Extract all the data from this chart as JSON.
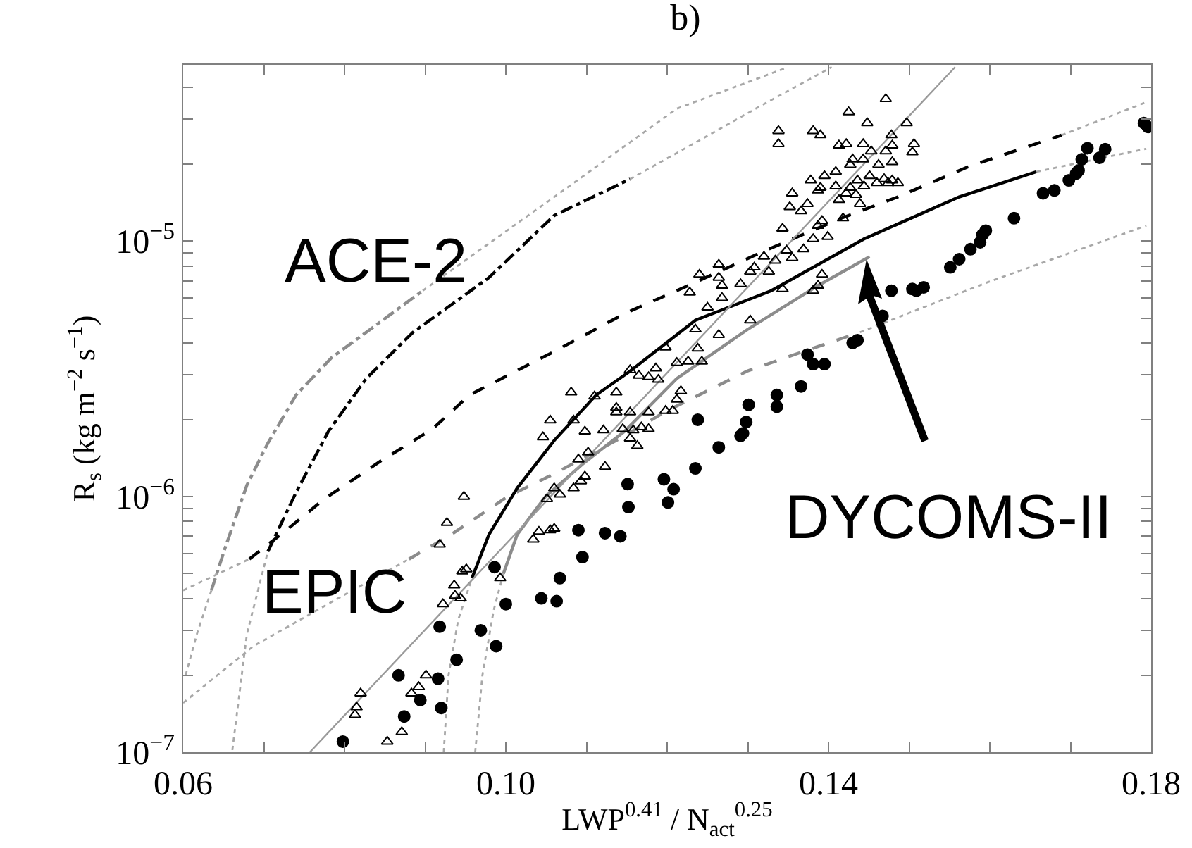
{
  "chart_data": {
    "type": "scatter",
    "title": "b)",
    "xlabel": "LWP$^{0.41}$ / N$_{act}$$^{0.25}$",
    "ylabel": "R$_{s}$ (kg m$^{−2}$ s$^{−1}$)",
    "log": "y",
    "xlim": [
      0.06,
      0.18
    ],
    "ylim": [
      1e-07,
      4.9e-05
    ],
    "xticks": [
      0.06,
      {
        "value": 0.07,
        "label": null
      },
      {
        "value": 0.08,
        "label": null
      },
      {
        "value": 0.09,
        "label": null
      },
      {
        "value": 0.1,
        "label": "0.10"
      },
      {
        "value": 0.11,
        "label": null
      },
      {
        "value": 0.12,
        "label": null
      },
      {
        "value": 0.13,
        "label": null
      },
      0.14,
      {
        "value": 0.15,
        "label": null
      },
      {
        "value": 0.16,
        "label": null
      },
      {
        "value": 0.17,
        "label": null
      },
      0.18
    ],
    "yticks": [
      {
        "value": 1e-07,
        "label": "10$^{−7}$"
      },
      {
        "value": 2e-07,
        "label": null
      },
      {
        "value": 3e-07,
        "label": null
      },
      {
        "value": 4e-07,
        "label": null
      },
      {
        "value": 5e-07,
        "label": null
      },
      {
        "value": 6e-07,
        "label": null
      },
      {
        "value": 7e-07,
        "label": null
      },
      {
        "value": 8e-07,
        "label": null
      },
      {
        "value": 9e-07,
        "label": null
      },
      {
        "value": 1e-06,
        "label": "10$^{−6}$"
      },
      {
        "value": 2e-06,
        "label": null
      },
      {
        "value": 3e-06,
        "label": null
      },
      {
        "value": 4e-06,
        "label": null
      },
      {
        "value": 5e-06,
        "label": null
      },
      {
        "value": 6e-06,
        "label": null
      },
      {
        "value": 7e-06,
        "label": null
      },
      {
        "value": 8e-06,
        "label": null
      },
      {
        "value": 9e-06,
        "label": null
      },
      {
        "value": 1e-05,
        "label": "10$^{−5}$"
      },
      {
        "value": 2e-05,
        "label": null
      },
      {
        "value": 3e-05,
        "label": null
      },
      {
        "value": 4e-05,
        "label": null
      }
    ],
    "annotations": [
      "ACE-2",
      "EPIC",
      "DYCOMS-II"
    ],
    "series": [
      {
        "type": "line",
        "line_style": "dotted",
        "color": "#a8a8a8",
        "x": [
          0.0603,
          0.0617,
          0.0635
        ],
        "values": [
          2e-07,
          2.9e-07,
          4.3e-07
        ]
      },
      {
        "type": "line",
        "line_style": "dashdot",
        "color": "#8c8c8c",
        "x": [
          0.0635,
          0.0652,
          0.0679,
          0.0705,
          0.074,
          0.0784,
          0.0827,
          0.0897
        ],
        "values": [
          4.3e-07,
          6.3e-07,
          1.11e-06,
          1.62e-06,
          2.5e-06,
          3.5e-06,
          4.4e-06,
          6.4e-06
        ]
      },
      {
        "type": "line",
        "line_style": "dotted",
        "color": "#a8a8a8",
        "x": [
          0.0897,
          0.106,
          0.1212,
          0.135
        ],
        "values": [
          6.4e-06,
          1.49e-05,
          3.3e-05,
          4.8e-05
        ]
      },
      {
        "type": "line",
        "line_style": "dotted",
        "color": "#a8a8a8",
        "x": [
          0.0661,
          0.0679,
          0.0705
        ],
        "values": [
          1.02e-07,
          2.9e-07,
          6.1e-07
        ]
      },
      {
        "type": "line",
        "line_style": "dashdot",
        "color": "#000000",
        "x": [
          0.0705,
          0.074,
          0.078,
          0.0827,
          0.0885,
          0.0979,
          0.106,
          0.1154
        ],
        "values": [
          6.1e-07,
          1.04e-06,
          1.8e-06,
          2.9e-06,
          4.4e-06,
          7.2e-06,
          1.26e-05,
          1.75e-05
        ]
      },
      {
        "type": "line",
        "line_style": "dotted",
        "color": "#a8a8a8",
        "x": [
          0.1154,
          0.1242,
          0.1317,
          0.1404
        ],
        "values": [
          1.75e-05,
          2.5e-05,
          3.4e-05,
          4.8e-05
        ]
      },
      {
        "type": "line",
        "line_style": "dotted",
        "color": "#a8a8a8",
        "x": [
          0.06,
          0.0682
        ],
        "values": [
          4.3e-07,
          5.7e-07
        ]
      },
      {
        "type": "line",
        "line_style": "dashed",
        "color": "#000000",
        "x": [
          0.0682,
          0.0728,
          0.0775,
          0.0845,
          0.0909,
          0.0955,
          0.106,
          0.1147,
          0.1235,
          0.1322,
          0.1416,
          0.1486,
          0.1574,
          0.1689
        ],
        "values": [
          5.7e-07,
          7.4e-07,
          9.8e-07,
          1.38e-06,
          1.84e-06,
          2.5e-06,
          3.7e-06,
          5.2e-06,
          6.9e-06,
          9.2e-06,
          1.23e-05,
          1.49e-05,
          1.96e-05,
          2.6e-05
        ]
      },
      {
        "type": "line",
        "line_style": "dotted",
        "color": "#a8a8a8",
        "x": [
          0.1689,
          0.1794
        ],
        "values": [
          2.6e-05,
          3.5e-05
        ]
      },
      {
        "type": "line",
        "line_style": "dotted",
        "color": "#a8a8a8",
        "x": [
          0.06,
          0.0687,
          0.0792,
          0.088
        ],
        "values": [
          1.56e-07,
          2.6e-07,
          4e-07,
          5.7e-07
        ]
      },
      {
        "type": "line",
        "line_style": "dashed",
        "color": "#8c8c8c",
        "x": [
          0.088,
          0.0932,
          0.1002,
          0.106,
          0.1137,
          0.12,
          0.1299,
          0.1369,
          0.1439
        ],
        "values": [
          5.7e-07,
          7.1e-07,
          1e-06,
          1.23e-06,
          1.66e-06,
          2.17e-06,
          3.1e-06,
          3.7e-06,
          4.4e-06
        ]
      },
      {
        "type": "line",
        "line_style": "dotted",
        "color": "#a8a8a8",
        "x": [
          0.1439,
          0.1597,
          0.1794
        ],
        "values": [
          4.4e-06,
          6.9e-06,
          1.15e-05
        ]
      },
      {
        "type": "line",
        "line_style": "dotted",
        "color": "#a8a8a8",
        "x": [
          0.0923,
          0.0929,
          0.0941,
          0.0958
        ],
        "values": [
          1e-07,
          2e-07,
          3.3e-07,
          4.8e-07
        ]
      },
      {
        "type": "line",
        "line_style": "solid",
        "color": "#000000",
        "x": [
          0.0958,
          0.0979,
          0.1014,
          0.106,
          0.1112,
          0.1154,
          0.1235,
          0.1329,
          0.1444,
          0.1562,
          0.1658
        ],
        "values": [
          4.8e-07,
          7.1e-07,
          1.08e-06,
          1.66e-06,
          2.5e-06,
          3.1e-06,
          4.9e-06,
          6.4e-06,
          1.02e-05,
          1.49e-05,
          1.87e-05
        ]
      },
      {
        "type": "line",
        "line_style": "dotted",
        "color": "#a8a8a8",
        "x": [
          0.1658,
          0.1794
        ],
        "values": [
          1.87e-05,
          2.3e-05
        ]
      },
      {
        "type": "line",
        "line_style": "dotted",
        "color": "#a8a8a8",
        "x": [
          0.0962,
          0.0971,
          0.0985,
          0.0997
        ],
        "values": [
          1e-07,
          2e-07,
          3.6e-07,
          5e-07
        ]
      },
      {
        "type": "line",
        "line_style": "solid",
        "color": "#8c8c8c",
        "x": [
          0.0997,
          0.1014,
          0.1049,
          0.1095,
          0.1147,
          0.1212,
          0.1299,
          0.1387,
          0.1451
        ],
        "values": [
          5e-07,
          7.1e-07,
          1e-06,
          1.34e-06,
          1.8e-06,
          2.9e-06,
          4.5e-06,
          6.7e-06,
          8.7e-06
        ]
      },
      {
        "type": "line",
        "line_style": "solid",
        "color": "#9a9a9a",
        "x": [
          0.0757,
          0.1557
        ],
        "values": [
          1e-07,
          4.8e-05
        ]
      },
      {
        "marker": "triangle",
        "color": "#000000",
        "x": [
          0.082,
          0.0815,
          0.0813,
          0.0853,
          0.0871,
          0.0883,
          0.0892,
          0.0901,
          0.0922,
          0.0936,
          0.0937,
          0.0944,
          0.0946,
          0.0951,
          0.0918,
          0.0927,
          0.0948,
          0.0993,
          0.1034,
          0.1041,
          0.1055,
          0.106,
          0.1051,
          0.1067,
          0.106,
          0.1084,
          0.1093,
          0.1098,
          0.109,
          0.1102,
          0.1098,
          0.1123,
          0.1121,
          0.1145,
          0.1154,
          0.1163,
          0.1158,
          0.1168,
          0.1055,
          0.1046,
          0.1084,
          0.1137,
          0.1154,
          0.1177,
          0.1198,
          0.1207,
          0.1212,
          0.1081,
          0.111,
          0.1137,
          0.1154,
          0.1165,
          0.1177,
          0.1186,
          0.1189,
          0.1198,
          0.1212,
          0.1226,
          0.1217,
          0.1235,
          0.1228,
          0.124,
          0.1177,
          0.1137,
          0.1243,
          0.1264,
          0.1264,
          0.1268,
          0.1268,
          0.1291,
          0.1303,
          0.1308,
          0.132,
          0.1326,
          0.1303,
          0.1264,
          0.125,
          0.1238,
          0.1343,
          0.1334,
          0.1348,
          0.1355,
          0.1369,
          0.1343,
          0.1352,
          0.1355,
          0.1366,
          0.1374,
          0.1381,
          0.1387,
          0.1392,
          0.1399,
          0.1387,
          0.1378,
          0.139,
          0.1395,
          0.1409,
          0.1413,
          0.1422,
          0.1427,
          0.1434,
          0.1436,
          0.1444,
          0.1451,
          0.146,
          0.1469,
          0.1474,
          0.1479,
          0.1486,
          0.1418,
          0.1439,
          0.1409,
          0.1427,
          0.143,
          0.1443,
          0.1462,
          0.1479,
          0.1413,
          0.1422,
          0.1443,
          0.1453,
          0.1471,
          0.1479,
          0.1478,
          0.1504,
          0.1506,
          0.1338,
          0.1338,
          0.1381,
          0.139,
          0.1425,
          0.1448,
          0.1497,
          0.1471,
          0.1381,
          0.1387,
          0.1392
        ],
        "values": [
          1.7e-07,
          1.5e-07,
          1.4e-07,
          1.1e-07,
          1.2e-07,
          1.7e-07,
          1.8e-07,
          2e-07,
          3.8e-07,
          4.5e-07,
          4.1e-07,
          4e-07,
          5.1e-07,
          5.2e-07,
          6.5e-07,
          7.9e-07,
          1e-06,
          4.8e-07,
          6.8e-07,
          7.3e-07,
          7.4e-07,
          7.5e-07,
          9.8e-07,
          1.02e-06,
          1.08e-06,
          1.08e-06,
          1.15e-06,
          1.2e-06,
          1.4e-06,
          1.49e-06,
          1.8e-06,
          1.31e-06,
          1.82e-06,
          1.84e-06,
          1.69e-06,
          1.58e-06,
          1.82e-06,
          1.87e-06,
          1.99e-06,
          1.71e-06,
          1.99e-06,
          2.14e-06,
          2.14e-06,
          2.14e-06,
          2.17e-06,
          2.17e-06,
          2.4e-06,
          2.56e-06,
          2.47e-06,
          2.56e-06,
          3.13e-06,
          2.98e-06,
          2.94e-06,
          3.18e-06,
          2.87e-06,
          3.84e-06,
          3.34e-06,
          3.38e-06,
          2.59e-06,
          4.52e-06,
          6.3e-06,
          7.4e-06,
          1.84e-06,
          2.23e-06,
          3.38e-06,
          8.1e-06,
          7.2e-06,
          6.7e-06,
          6e-06,
          6.8e-06,
          7.6e-06,
          7.9e-06,
          8.7e-06,
          7.6e-06,
          4.9e-06,
          4.3e-06,
          5.5e-06,
          3.8e-06,
          6.5e-06,
          8.4e-06,
          9.2e-06,
          8.6e-06,
          9.3e-06,
          1.12e-05,
          1.36e-05,
          1.54e-05,
          1.31e-05,
          1.4e-05,
          1.02e-05,
          1.15e-05,
          1.2e-05,
          1.04e-05,
          1.58e-05,
          1.73e-05,
          1.62e-05,
          1.8e-05,
          1.64e-05,
          1.45e-05,
          1.54e-05,
          1.62e-05,
          1.52e-05,
          1.73e-05,
          1.64e-05,
          1.8e-05,
          1.69e-05,
          1.75e-05,
          1.69e-05,
          1.73e-05,
          1.69e-05,
          1.23e-05,
          1.4e-05,
          1.87e-05,
          1.99e-05,
          2.09e-05,
          2.09e-05,
          1.99e-05,
          2.04e-05,
          2.37e-05,
          2.4e-05,
          2.4e-05,
          2.25e-05,
          2.25e-05,
          2.37e-05,
          2.6e-05,
          2.23e-05,
          2.4e-05,
          2.7e-05,
          2.4e-05,
          2.7e-05,
          2.6e-05,
          3.2e-05,
          2.9e-05,
          2.9e-05,
          3.6e-05,
          6.4e-06,
          6.7e-06,
          7.4e-06
        ]
      },
      {
        "marker": "circle",
        "color": "#000000",
        "x": [
          0.0798,
          0.0867,
          0.0874,
          0.0894,
          0.0916,
          0.092,
          0.0918,
          0.0939,
          0.0969,
          0.0988,
          0.0986,
          0.1,
          0.1044,
          0.1063,
          0.1067,
          0.109,
          0.1095,
          0.1123,
          0.1142,
          0.1152,
          0.1151,
          0.1196,
          0.1201,
          0.1208,
          0.1235,
          0.1238,
          0.1264,
          0.1291,
          0.1294,
          0.1298,
          0.1301,
          0.1336,
          0.1336,
          0.1366,
          0.1374,
          0.1381,
          0.1395,
          0.143,
          0.1436,
          0.1467,
          0.1478,
          0.1504,
          0.1509,
          0.1518,
          0.1551,
          0.1562,
          0.1576,
          0.1588,
          0.1591,
          0.1595,
          0.163,
          0.1666,
          0.168,
          0.1698,
          0.1707,
          0.171,
          0.1714,
          0.1721,
          0.1736,
          0.1743,
          0.1791,
          0.1796
        ],
        "values": [
          1.1e-07,
          2e-07,
          1.38e-07,
          1.6e-07,
          1.94e-07,
          1.49e-07,
          3.1e-07,
          2.3e-07,
          3e-07,
          2.6e-07,
          5.3e-07,
          3.8e-07,
          4e-07,
          3.9e-07,
          4.8e-07,
          7.4e-07,
          5.8e-07,
          7.2e-07,
          7e-07,
          9.1e-07,
          1.12e-06,
          1.17e-06,
          9.5e-07,
          1.07e-06,
          1.29e-06,
          2e-06,
          1.56e-06,
          1.73e-06,
          1.77e-06,
          1.96e-06,
          2.29e-06,
          2.5e-06,
          2.25e-06,
          2.7e-06,
          3.6e-06,
          3.3e-06,
          3.3e-06,
          4e-06,
          4.1e-06,
          5.1e-06,
          6.4e-06,
          6.5e-06,
          6.4e-06,
          6.6e-06,
          7.9e-06,
          8.5e-06,
          9.3e-06,
          9.9e-06,
          1.06e-05,
          1.1e-05,
          1.23e-05,
          1.54e-05,
          1.58e-05,
          1.73e-05,
          1.84e-05,
          1.89e-05,
          2.09e-05,
          2.31e-05,
          2.12e-05,
          2.29e-05,
          2.9e-05,
          2.8e-05
        ]
      }
    ]
  }
}
